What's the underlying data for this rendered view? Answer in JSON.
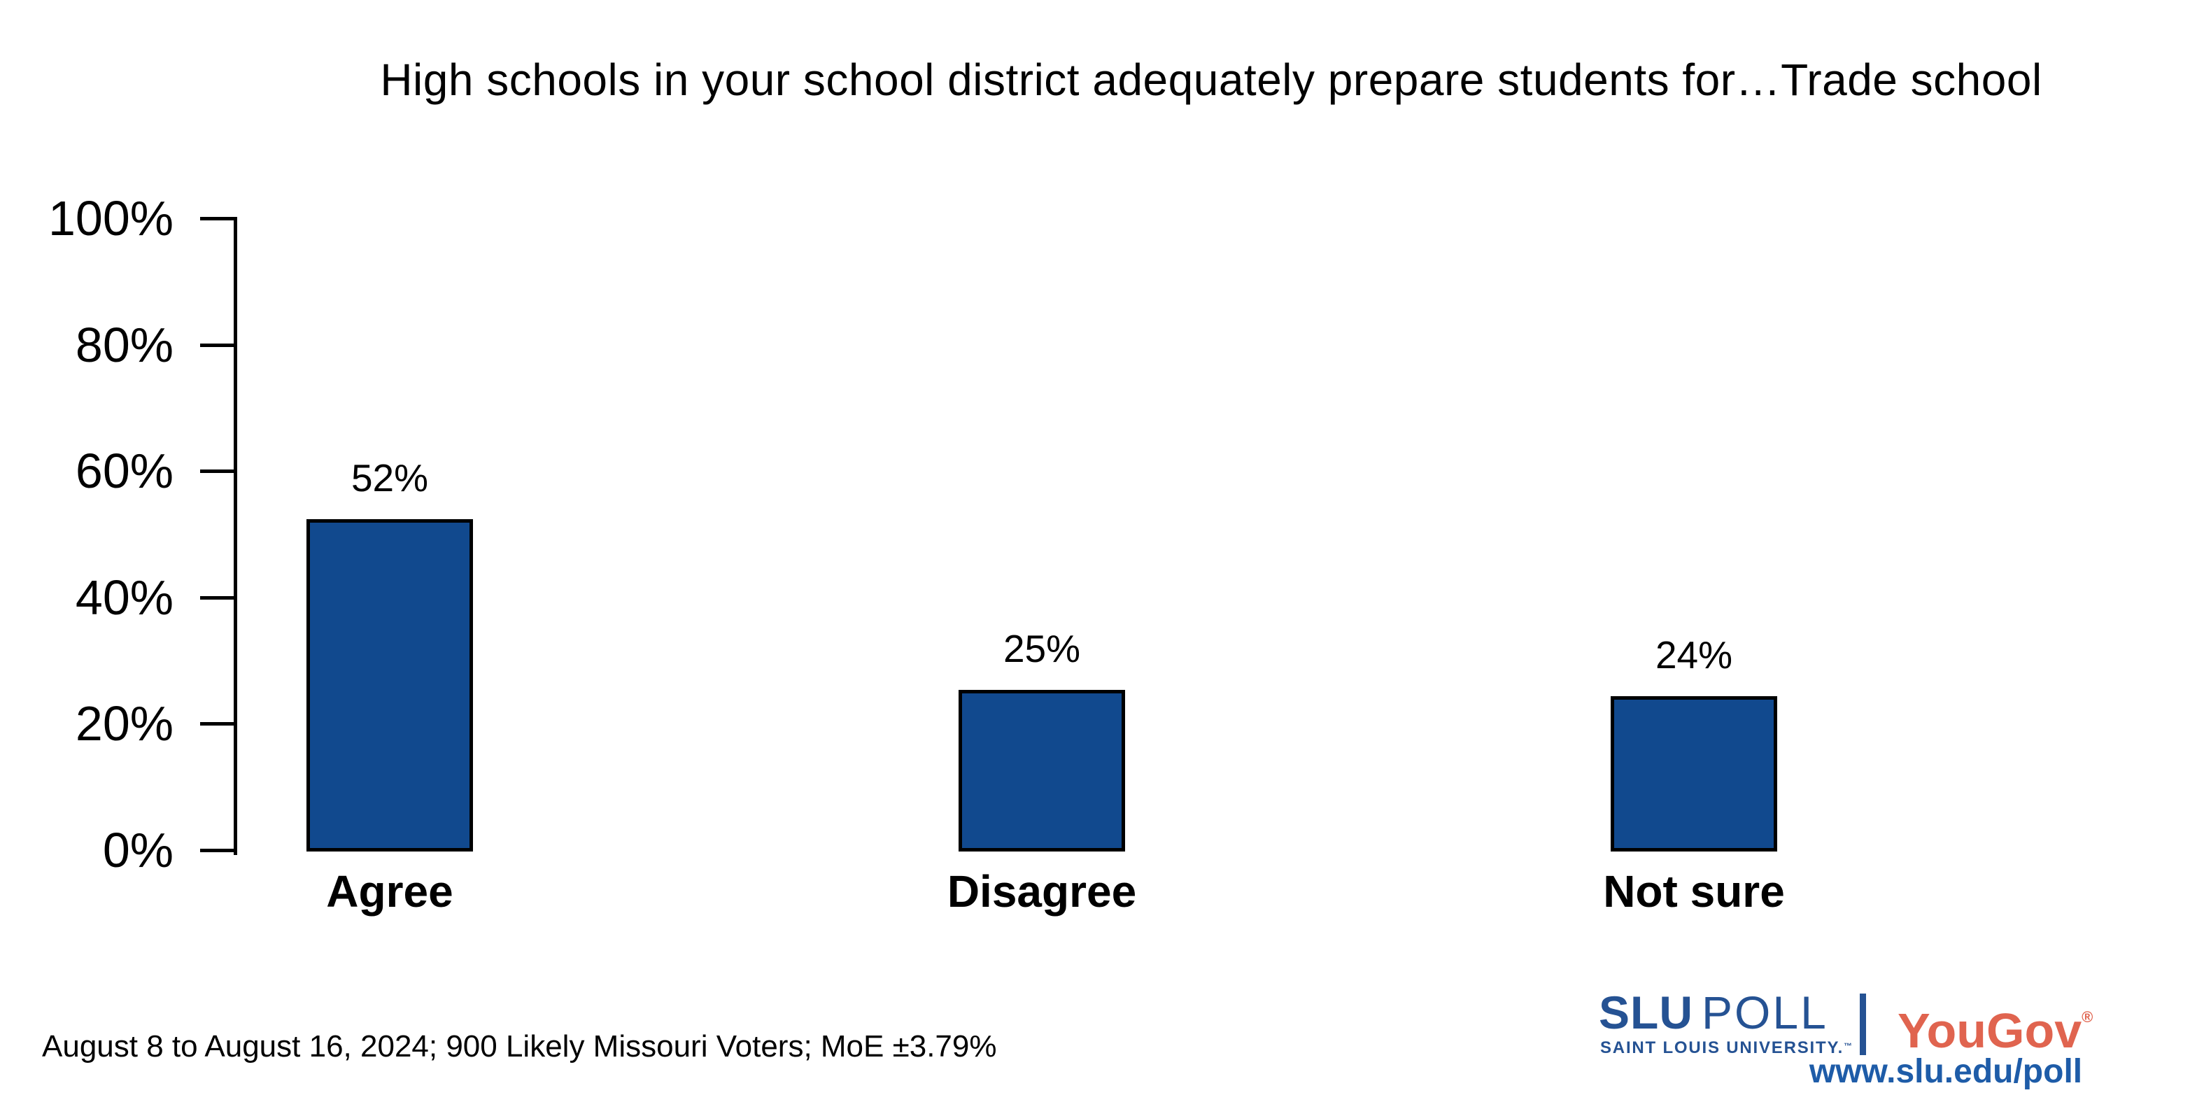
{
  "chart_data": {
    "type": "bar",
    "title": "High schools in your school district adequately prepare students for…Trade school",
    "categories": [
      "Agree",
      "Disagree",
      "Not sure"
    ],
    "values": [
      52,
      25,
      24
    ],
    "value_labels": [
      "52%",
      "25%",
      "24%"
    ],
    "xlabel": "",
    "ylabel": "",
    "ylim": [
      0,
      100
    ],
    "ytick_values": [
      0,
      20,
      40,
      60,
      80,
      100
    ],
    "ytick_labels": [
      "0%",
      "20%",
      "40%",
      "60%",
      "80%",
      "100%"
    ],
    "grid": false,
    "legend_position": "none",
    "bar_color": "#11498E",
    "bar_border_color": "#000000",
    "axis_color": "#000000"
  },
  "footer": {
    "source_note": "August 8 to August 16, 2024; 900 Likely Missouri Voters; MoE ±3.79%"
  },
  "branding": {
    "slu_name": "SLU",
    "poll_name": "POLL",
    "slu_sub": "SAINT LOUIS UNIVERSITY.",
    "slu_tm": "™",
    "yougov": "YouGov",
    "yougov_reg": "®",
    "url": "www.slu.edu/poll",
    "slu_blue": "#255293",
    "yougov_red": "#E0644F",
    "url_blue": "#1E5CA8"
  }
}
